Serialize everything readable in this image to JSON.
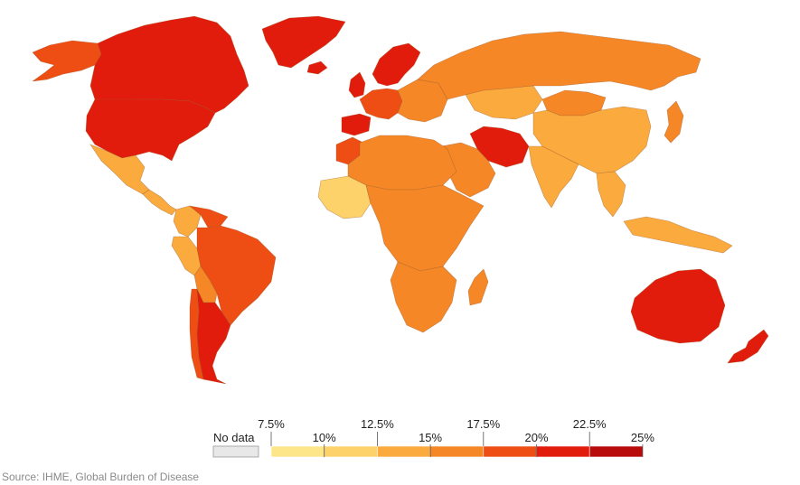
{
  "map": {
    "colors": {
      "no_data": "#e8e8e8",
      "bin_7_5_10": "#fde58a",
      "bin_10_12_5": "#fdd26a",
      "bin_12_5_15": "#fbab3e",
      "bin_15_17_5": "#f58726",
      "bin_17_5_20": "#ee4d14",
      "bin_20_22_5": "#e21c0c",
      "bin_22_5_25": "#b80b0b"
    },
    "regions": [
      {
        "name": "Canada",
        "color": "#e21c0c"
      },
      {
        "name": "Alaska",
        "color": "#ee4d14"
      },
      {
        "name": "Greenland",
        "color": "#e21c0c"
      },
      {
        "name": "United States",
        "color": "#e21c0c"
      },
      {
        "name": "Mexico",
        "color": "#fbab3e"
      },
      {
        "name": "Central America",
        "color": "#fbab3e"
      },
      {
        "name": "Colombia",
        "color": "#fbab3e"
      },
      {
        "name": "Venezuela",
        "color": "#ee4d14"
      },
      {
        "name": "Brazil",
        "color": "#ee4d14"
      },
      {
        "name": "Peru",
        "color": "#fbab3e"
      },
      {
        "name": "Bolivia",
        "color": "#f58726"
      },
      {
        "name": "Argentina",
        "color": "#e21c0c"
      },
      {
        "name": "Chile",
        "color": "#ee4d14"
      },
      {
        "name": "Iceland",
        "color": "#e21c0c"
      },
      {
        "name": "United Kingdom",
        "color": "#e21c0c"
      },
      {
        "name": "Scandinavia",
        "color": "#e21c0c"
      },
      {
        "name": "Western Europe",
        "color": "#ee4d14"
      },
      {
        "name": "Spain",
        "color": "#e21c0c"
      },
      {
        "name": "Eastern Europe",
        "color": "#f58726"
      },
      {
        "name": "Russia",
        "color": "#f58726"
      },
      {
        "name": "Kazakhstan",
        "color": "#fbab3e"
      },
      {
        "name": "Mongolia",
        "color": "#f58726"
      },
      {
        "name": "China",
        "color": "#fbab3e"
      },
      {
        "name": "Iran",
        "color": "#e21c0c"
      },
      {
        "name": "Arabian Peninsula",
        "color": "#f58726"
      },
      {
        "name": "India",
        "color": "#fbab3e"
      },
      {
        "name": "Southeast Asia",
        "color": "#fbab3e"
      },
      {
        "name": "Japan",
        "color": "#f58726"
      },
      {
        "name": "Indonesia",
        "color": "#fbab3e"
      },
      {
        "name": "Morocco",
        "color": "#ee4d14"
      },
      {
        "name": "North Africa",
        "color": "#f58726"
      },
      {
        "name": "West Africa",
        "color": "#fdd26a"
      },
      {
        "name": "Central & East Africa",
        "color": "#f58726"
      },
      {
        "name": "Southern Africa",
        "color": "#f58726"
      },
      {
        "name": "Madagascar",
        "color": "#f58726"
      },
      {
        "name": "Australia",
        "color": "#e21c0c"
      },
      {
        "name": "New Zealand",
        "color": "#e21c0c"
      }
    ]
  },
  "legend": {
    "no_data_label": "No data",
    "labels_top": [
      "7.5%",
      "12.5%",
      "17.5%",
      "22.5%"
    ],
    "labels_bottom": [
      "10%",
      "15%",
      "20%",
      "25%"
    ],
    "bin_colors": [
      "#fde58a",
      "#fdd26a",
      "#fbab3e",
      "#f58726",
      "#ee4d14",
      "#e21c0c",
      "#b80b0b"
    ],
    "no_data_color": "#e8e8e8"
  },
  "source": "Source: IHME, Global Burden of Disease"
}
